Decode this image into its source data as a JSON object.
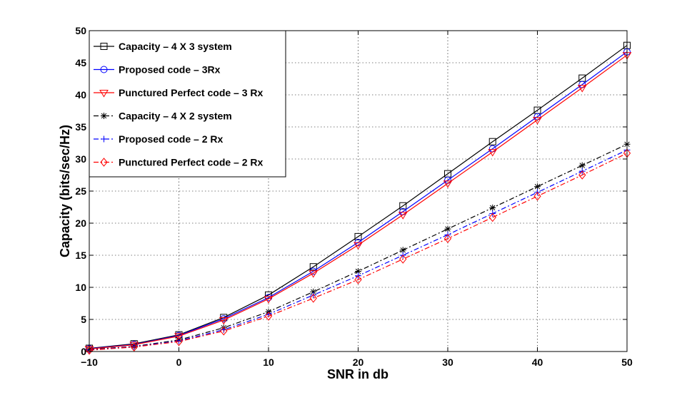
{
  "chart_data": {
    "type": "line",
    "title": "",
    "xlabel": "SNR in db",
    "ylabel": "Capacity (bits/sec/Hz)",
    "xlim": [
      -10,
      50
    ],
    "ylim": [
      0,
      50
    ],
    "xticks": [
      -10,
      0,
      10,
      20,
      30,
      40,
      50
    ],
    "xtick_labels": [
      "−10",
      "0",
      "10",
      "20",
      "30",
      "40",
      "50"
    ],
    "yticks": [
      0,
      5,
      10,
      15,
      20,
      25,
      30,
      35,
      40,
      45,
      50
    ],
    "ytick_labels": [
      "0",
      "5",
      "10",
      "15",
      "20",
      "25",
      "30",
      "35",
      "40",
      "45",
      "50"
    ],
    "grid": true,
    "legend_position": "top-left",
    "x": [
      -10,
      -5,
      0,
      5,
      10,
      15,
      20,
      25,
      30,
      35,
      40,
      45,
      50
    ],
    "series": [
      {
        "name": "Capacity – 4 X 3 system",
        "color": "#000000",
        "line": "solid",
        "marker": "square",
        "values": [
          0.5,
          1.2,
          2.6,
          5.3,
          8.8,
          13.2,
          17.9,
          22.7,
          27.7,
          32.7,
          37.6,
          42.6,
          47.7
        ]
      },
      {
        "name": "Proposed code – 3Rx",
        "color": "#0000ff",
        "line": "solid",
        "marker": "circle",
        "values": [
          0.45,
          1.1,
          2.5,
          5.1,
          8.4,
          12.5,
          17.0,
          21.8,
          26.7,
          31.6,
          36.6,
          41.6,
          46.7
        ]
      },
      {
        "name": "Punctured Perfect code – 3 Rx",
        "color": "#ff0000",
        "line": "solid",
        "marker": "triangle-down",
        "values": [
          0.4,
          1.05,
          2.4,
          4.9,
          8.2,
          12.2,
          16.6,
          21.3,
          26.2,
          31.1,
          36.1,
          41.1,
          46.2
        ]
      },
      {
        "name": "Capacity – 4 X 2 system",
        "color": "#000000",
        "line": "dashdot",
        "marker": "star",
        "values": [
          0.3,
          0.8,
          1.8,
          3.7,
          6.2,
          9.3,
          12.5,
          15.8,
          19.1,
          22.4,
          25.7,
          29.0,
          32.3
        ]
      },
      {
        "name": "Proposed code – 2 Rx",
        "color": "#0000ff",
        "line": "dashdot",
        "marker": "plus",
        "values": [
          0.25,
          0.75,
          1.65,
          3.4,
          5.8,
          8.8,
          11.8,
          15.0,
          18.2,
          21.5,
          24.8,
          28.1,
          31.4
        ]
      },
      {
        "name": "Punctured Perfect code – 2 Rx",
        "color": "#ff0000",
        "line": "dashdot",
        "marker": "diamond",
        "values": [
          0.2,
          0.7,
          1.55,
          3.2,
          5.5,
          8.3,
          11.2,
          14.4,
          17.6,
          20.9,
          24.2,
          27.5,
          30.9
        ]
      }
    ]
  }
}
